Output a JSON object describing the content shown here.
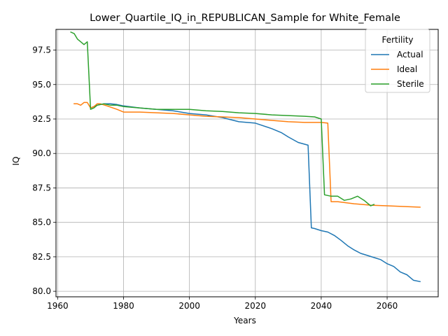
{
  "chart_data": {
    "type": "line",
    "title": "Lower_Quartile_IQ_in_REPUBLICAN_Sample for White_Female",
    "xlabel": "Years",
    "ylabel": "IQ",
    "xlim": [
      1959.5,
      2075.5
    ],
    "ylim": [
      79.6,
      99.0
    ],
    "xticks": [
      1960,
      1980,
      2000,
      2020,
      2040,
      2060
    ],
    "xtick_labels": [
      "1960",
      "1980",
      "2000",
      "2020",
      "2040",
      "2060"
    ],
    "yticks": [
      80.0,
      82.5,
      85.0,
      87.5,
      90.0,
      92.5,
      95.0,
      97.5
    ],
    "ytick_labels": [
      "80.0",
      "82.5",
      "85.0",
      "87.5",
      "90.0",
      "92.5",
      "95.0",
      "97.5"
    ],
    "grid": true,
    "legend": {
      "title": "Fertility",
      "location": "upper right"
    },
    "series": [
      {
        "name": "Actual",
        "color": "#1f77b4",
        "x": [
          1970,
          1972,
          1974,
          1976,
          1978,
          1980,
          1985,
          1990,
          1995,
          2000,
          2005,
          2010,
          2015,
          2020,
          2025,
          2028,
          2030,
          2033,
          2036,
          2037,
          2038,
          2040,
          2042,
          2044,
          2046,
          2048,
          2050,
          2052,
          2054,
          2056,
          2058,
          2060,
          2062,
          2064,
          2066,
          2068,
          2070
        ],
        "values": [
          93.3,
          93.5,
          93.6,
          93.6,
          93.55,
          93.45,
          93.3,
          93.2,
          93.1,
          92.9,
          92.8,
          92.6,
          92.3,
          92.2,
          91.8,
          91.5,
          91.2,
          90.8,
          90.6,
          84.6,
          84.55,
          84.4,
          84.3,
          84.05,
          83.7,
          83.3,
          83.0,
          82.75,
          82.6,
          82.45,
          82.3,
          82.0,
          81.8,
          81.4,
          81.2,
          80.8,
          80.7
        ]
      },
      {
        "name": "Ideal",
        "color": "#ff7f0e",
        "x": [
          1965,
          1966,
          1967,
          1968,
          1969,
          1970,
          1971,
          1972,
          1973,
          1975,
          1978,
          1980,
          1985,
          1990,
          1995,
          2000,
          2005,
          2010,
          2015,
          2020,
          2025,
          2030,
          2035,
          2040,
          2042,
          2043,
          2045,
          2050,
          2055,
          2060,
          2065,
          2070
        ],
        "values": [
          93.6,
          93.6,
          93.5,
          93.7,
          93.7,
          93.3,
          93.4,
          93.6,
          93.6,
          93.45,
          93.2,
          93.0,
          93.0,
          92.95,
          92.9,
          92.8,
          92.7,
          92.65,
          92.6,
          92.5,
          92.4,
          92.3,
          92.25,
          92.25,
          92.2,
          86.5,
          86.5,
          86.35,
          86.25,
          86.2,
          86.15,
          86.1
        ]
      },
      {
        "name": "Sterile",
        "color": "#2ca02c",
        "x": [
          1964,
          1965,
          1966,
          1967,
          1968,
          1969,
          1970,
          1971,
          1972,
          1974,
          1976,
          1978,
          1980,
          1985,
          1990,
          1995,
          2000,
          2005,
          2010,
          2015,
          2020,
          2025,
          2030,
          2035,
          2038,
          2040,
          2041,
          2043,
          2045,
          2047,
          2049,
          2051,
          2053,
          2055,
          2056
        ],
        "values": [
          98.8,
          98.7,
          98.3,
          98.1,
          97.9,
          98.1,
          93.2,
          93.3,
          93.5,
          93.6,
          93.5,
          93.5,
          93.4,
          93.3,
          93.2,
          93.2,
          93.2,
          93.1,
          93.05,
          92.95,
          92.9,
          92.8,
          92.75,
          92.7,
          92.65,
          92.5,
          87.0,
          86.9,
          86.9,
          86.6,
          86.7,
          86.9,
          86.6,
          86.2,
          86.3
        ]
      }
    ]
  }
}
